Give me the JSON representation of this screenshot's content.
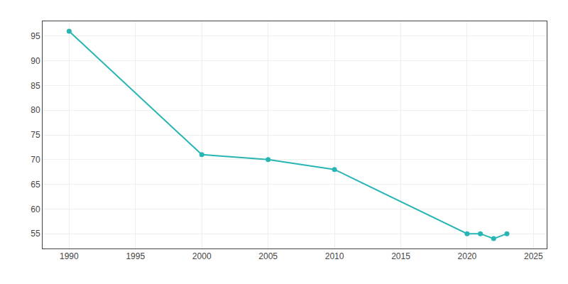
{
  "chart_data": {
    "type": "line",
    "x": [
      1990,
      2000,
      2005,
      2010,
      2020,
      2021,
      2022,
      2023
    ],
    "values": [
      96,
      71,
      70,
      68,
      55,
      55,
      54,
      55
    ],
    "color": "#2ab5b5",
    "marker": "circle",
    "xlim": [
      1988,
      2026
    ],
    "ylim": [
      52,
      98
    ],
    "xticks": [
      1990,
      1995,
      2000,
      2005,
      2010,
      2015,
      2020,
      2025
    ],
    "yticks": [
      55,
      60,
      65,
      70,
      75,
      80,
      85,
      90,
      95
    ],
    "grid": true
  }
}
